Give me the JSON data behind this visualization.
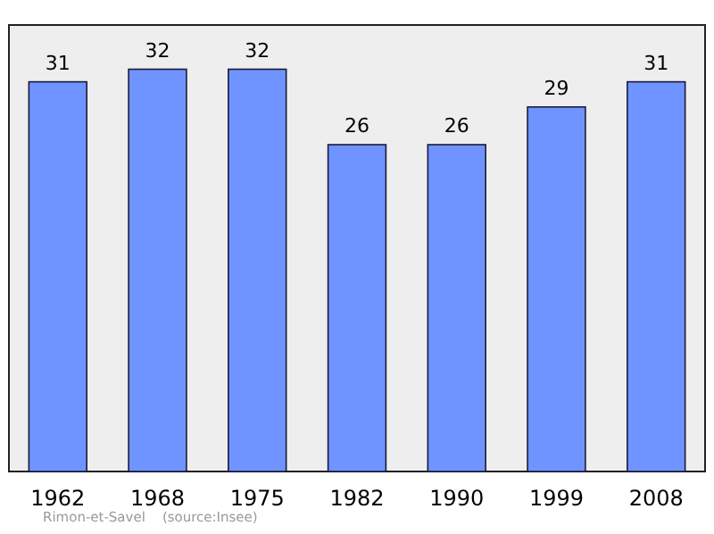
{
  "chart_data": {
    "type": "bar",
    "categories": [
      "1962",
      "1968",
      "1975",
      "1982",
      "1990",
      "1999",
      "2008"
    ],
    "values": [
      31,
      32,
      32,
      26,
      26,
      29,
      31
    ],
    "color": "#7094ff",
    "data_labels": true,
    "annotations": [
      "Rimon-et-Savel    (source:Insee)"
    ]
  }
}
